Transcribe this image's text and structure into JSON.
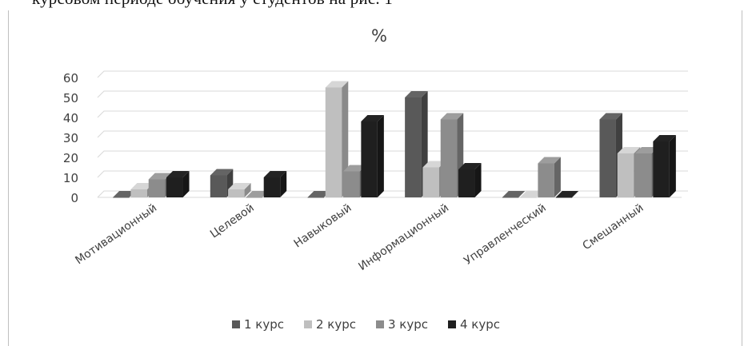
{
  "page": {
    "top_text": "курсовом периоде обучения у студентов на рис. 1"
  },
  "chart_data": {
    "type": "bar",
    "title": "%",
    "categories": [
      "Мотивационный",
      "Целевой",
      "Навыковый",
      "Информационный",
      "Управленческий",
      "Смешанный"
    ],
    "series": [
      {
        "name": "1 курс",
        "color": "#595959",
        "values": [
          0,
          11,
          0,
          50,
          0,
          39
        ]
      },
      {
        "name": "2 курс",
        "color": "#bfbfbf",
        "values": [
          4,
          4,
          55,
          15,
          0,
          22
        ]
      },
      {
        "name": "3 курс",
        "color": "#8c8c8c",
        "values": [
          9,
          0,
          13,
          39,
          17,
          22
        ]
      },
      {
        "name": "4 курс",
        "color": "#1f1f1f",
        "values": [
          10,
          10,
          38,
          14,
          0,
          28
        ]
      }
    ],
    "yticks": [
      0,
      10,
      20,
      30,
      40,
      50,
      60
    ],
    "ylim": [
      0,
      60
    ],
    "grid": true,
    "legend": "bottom",
    "style": "3d-column"
  }
}
